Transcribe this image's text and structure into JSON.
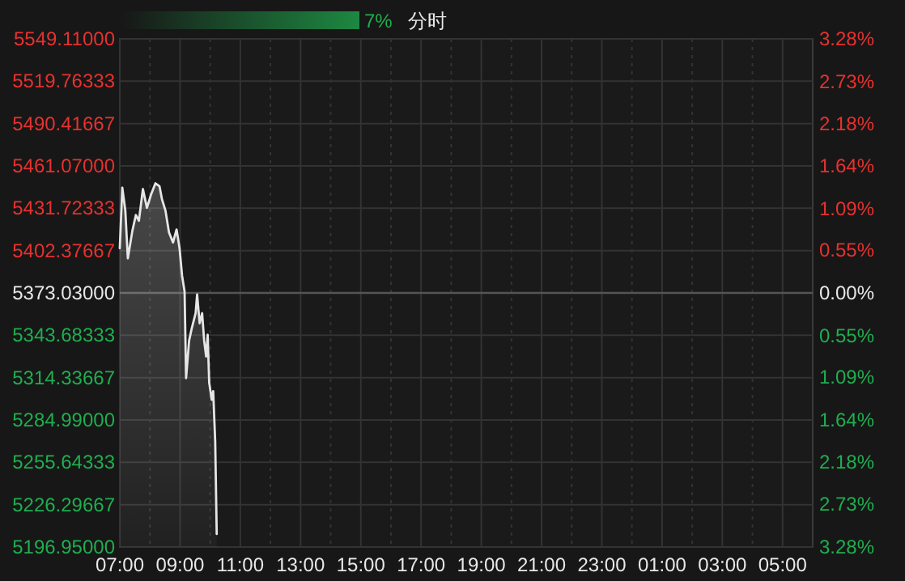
{
  "chart_data": {
    "type": "area",
    "title": "分时",
    "annotations": [
      "7%"
    ],
    "xlim": [
      "2000-01-01T07:00",
      "2000-01-02T06:00"
    ],
    "xticks": [
      {
        "value": "2000-01-01T07:00",
        "label": "07:00"
      },
      {
        "value": "2000-01-01T08:00",
        "label": null
      },
      {
        "value": "2000-01-01T09:00",
        "label": "09:00"
      },
      {
        "value": "2000-01-01T10:00",
        "label": null
      },
      {
        "value": "2000-01-01T11:00",
        "label": "11:00"
      },
      {
        "value": "2000-01-01T12:00",
        "label": null
      },
      {
        "value": "2000-01-01T13:00",
        "label": "13:00"
      },
      {
        "value": "2000-01-01T14:00",
        "label": null
      },
      {
        "value": "2000-01-01T15:00",
        "label": "15:00"
      },
      {
        "value": "2000-01-01T16:00",
        "label": null
      },
      {
        "value": "2000-01-01T17:00",
        "label": "17:00"
      },
      {
        "value": "2000-01-01T18:00",
        "label": null
      },
      {
        "value": "2000-01-01T19:00",
        "label": "19:00"
      },
      {
        "value": "2000-01-01T20:00",
        "label": null
      },
      {
        "value": "2000-01-01T21:00",
        "label": "21:00"
      },
      {
        "value": "2000-01-01T22:00",
        "label": null
      },
      {
        "value": "2000-01-01T23:00",
        "label": "23:00"
      },
      {
        "value": "2000-01-02T00:00",
        "label": null
      },
      {
        "value": "2000-01-02T01:00",
        "label": "01:00"
      },
      {
        "value": "2000-01-02T02:00",
        "label": null
      },
      {
        "value": "2000-01-02T03:00",
        "label": "03:00"
      },
      {
        "value": "2000-01-02T04:00",
        "label": null
      },
      {
        "value": "2000-01-02T05:00",
        "label": "05:00"
      }
    ],
    "ylim": [
      5196.95,
      5549.11
    ],
    "yticks": [
      {
        "value": 5549.11,
        "label": "5549.11000"
      },
      {
        "value": 5519.76333,
        "label": "5519.76333"
      },
      {
        "value": 5490.41667,
        "label": "5490.41667"
      },
      {
        "value": 5461.07,
        "label": "5461.07000"
      },
      {
        "value": 5431.72333,
        "label": "5431.72333"
      },
      {
        "value": 5402.37667,
        "label": "5402.37667"
      },
      {
        "value": 5373.03,
        "label": "5373.03000"
      },
      {
        "value": 5343.68333,
        "label": "5343.68333"
      },
      {
        "value": 5314.33667,
        "label": "5314.33667"
      },
      {
        "value": 5284.99,
        "label": "5284.99000"
      },
      {
        "value": 5255.64333,
        "label": "5255.64333"
      },
      {
        "value": 5226.29667,
        "label": "5226.29667"
      },
      {
        "value": 5196.95,
        "label": "5196.95000"
      }
    ],
    "y2lim": [
      -3.28,
      3.28
    ],
    "y2ticks": [
      {
        "value": 3.28,
        "label": "3.28%"
      },
      {
        "value": 2.73,
        "label": "2.73%"
      },
      {
        "value": 2.18,
        "label": "2.18%"
      },
      {
        "value": 1.64,
        "label": "1.64%"
      },
      {
        "value": 1.09,
        "label": "1.09%"
      },
      {
        "value": 0.55,
        "label": "0.55%"
      },
      {
        "value": 0,
        "label": "0.00%"
      },
      {
        "value": -0.55,
        "label": "0.55%"
      },
      {
        "value": -1.09,
        "label": "1.09%"
      },
      {
        "value": -1.64,
        "label": "1.64%"
      },
      {
        "value": -2.18,
        "label": "2.18%"
      },
      {
        "value": -2.73,
        "label": "2.73%"
      },
      {
        "value": -3.28,
        "label": "3.28%"
      }
    ],
    "grid": true,
    "ref_lines": [
      {
        "axis": "y",
        "value": 5373.03,
        "color": "#555555"
      }
    ],
    "series": [
      {
        "color": "#e6e6e6",
        "x": [
          "2000-01-01T07:00",
          "2000-01-01T07:05",
          "2000-01-01T07:11",
          "2000-01-01T07:16",
          "2000-01-01T07:25",
          "2000-01-01T07:32",
          "2000-01-01T07:38",
          "2000-01-01T07:46",
          "2000-01-01T07:54",
          "2000-01-01T08:02",
          "2000-01-01T08:11",
          "2000-01-01T08:19",
          "2000-01-01T08:24",
          "2000-01-01T08:31",
          "2000-01-01T08:38",
          "2000-01-01T08:46",
          "2000-01-01T08:53",
          "2000-01-01T08:59",
          "2000-01-01T09:04",
          "2000-01-01T09:09",
          "2000-01-01T09:12",
          "2000-01-01T09:18",
          "2000-01-01T09:23",
          "2000-01-01T09:31",
          "2000-01-01T09:34",
          "2000-01-01T09:39",
          "2000-01-01T09:44",
          "2000-01-01T09:48",
          "2000-01-01T09:52",
          "2000-01-01T09:55",
          "2000-01-01T09:58",
          "2000-01-01T10:03",
          "2000-01-01T10:06",
          "2000-01-01T10:10",
          "2000-01-01T10:13"
        ],
        "values": [
          5404,
          5446,
          5430,
          5397,
          5416,
          5427,
          5423,
          5445,
          5432,
          5441,
          5449,
          5447,
          5438,
          5430,
          5415,
          5408,
          5417,
          5404,
          5385,
          5374,
          5314,
          5340,
          5348,
          5359,
          5372,
          5352,
          5359,
          5340,
          5329,
          5344,
          5311,
          5299,
          5305,
          5270,
          5206
        ]
      }
    ]
  }
}
